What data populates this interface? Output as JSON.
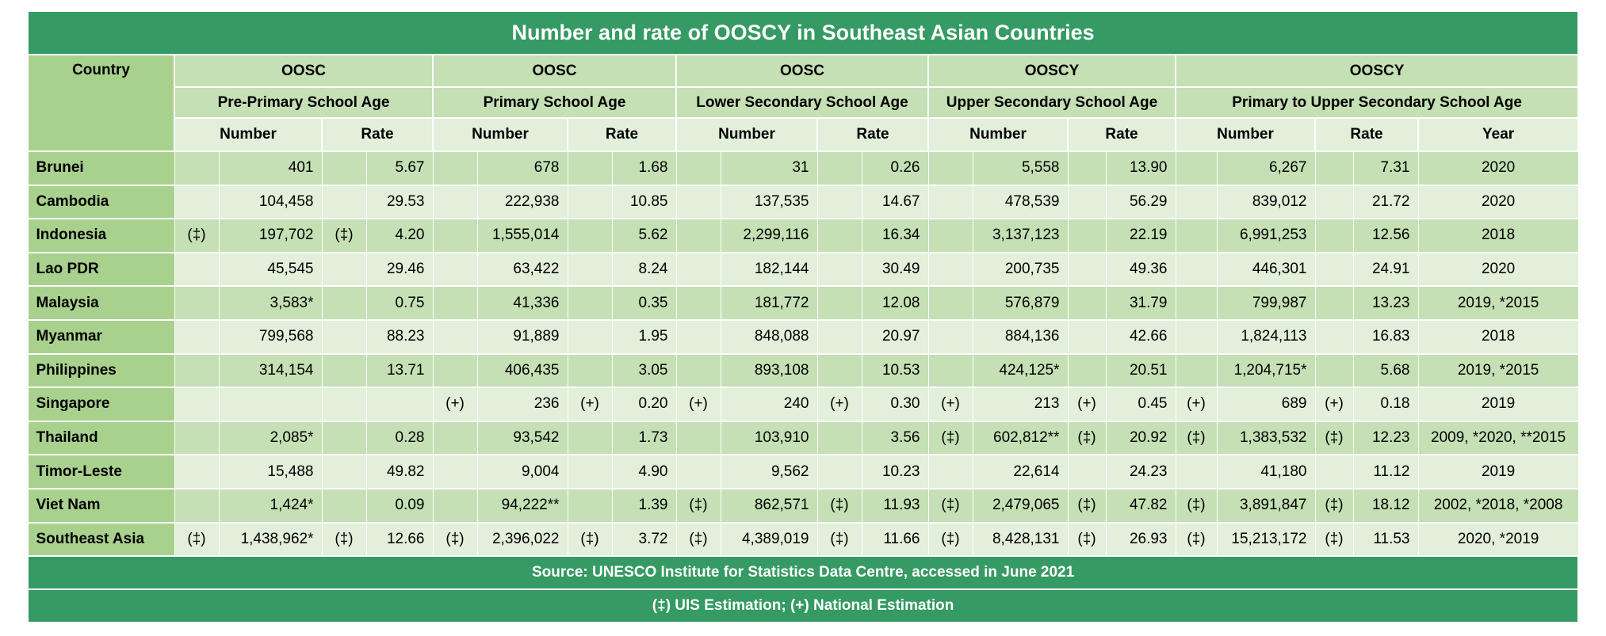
{
  "title": "Number and rate of OOSCY in Southeast Asian Countries",
  "header": {
    "country": "Country",
    "groups": [
      {
        "top": "OOSC",
        "sub": "Pre-Primary School Age"
      },
      {
        "top": "OOSC",
        "sub": "Primary School Age"
      },
      {
        "top": "OOSC",
        "sub": "Lower Secondary School Age"
      },
      {
        "top": "OOSCY",
        "sub": "Upper Secondary School Age"
      },
      {
        "top": "OOSCY",
        "sub": "Primary to Upper Secondary School Age"
      }
    ],
    "number": "Number",
    "rate": "Rate",
    "year": "Year"
  },
  "rows": [
    {
      "country": "Brunei",
      "cells": [
        [
          "",
          "401",
          "",
          "5.67"
        ],
        [
          "",
          "678",
          "",
          "1.68"
        ],
        [
          "",
          "31",
          "",
          "0.26"
        ],
        [
          "",
          "5,558",
          "",
          "13.90"
        ],
        [
          "",
          "6,267",
          "",
          "7.31"
        ]
      ],
      "year": "2020"
    },
    {
      "country": "Cambodia",
      "cells": [
        [
          "",
          "104,458",
          "",
          "29.53"
        ],
        [
          "",
          "222,938",
          "",
          "10.85"
        ],
        [
          "",
          "137,535",
          "",
          "14.67"
        ],
        [
          "",
          "478,539",
          "",
          "56.29"
        ],
        [
          "",
          "839,012",
          "",
          "21.72"
        ]
      ],
      "year": "2020"
    },
    {
      "country": "Indonesia",
      "cells": [
        [
          "(‡)",
          "197,702",
          "(‡)",
          "4.20"
        ],
        [
          "",
          "1,555,014",
          "",
          "5.62"
        ],
        [
          "",
          "2,299,116",
          "",
          "16.34"
        ],
        [
          "",
          "3,137,123",
          "",
          "22.19"
        ],
        [
          "",
          "6,991,253",
          "",
          "12.56"
        ]
      ],
      "year": "2018"
    },
    {
      "country": "Lao PDR",
      "cells": [
        [
          "",
          "45,545",
          "",
          "29.46"
        ],
        [
          "",
          "63,422",
          "",
          "8.24"
        ],
        [
          "",
          "182,144",
          "",
          "30.49"
        ],
        [
          "",
          "200,735",
          "",
          "49.36"
        ],
        [
          "",
          "446,301",
          "",
          "24.91"
        ]
      ],
      "year": "2020"
    },
    {
      "country": "Malaysia",
      "cells": [
        [
          "",
          "3,583*",
          "",
          "0.75"
        ],
        [
          "",
          "41,336",
          "",
          "0.35"
        ],
        [
          "",
          "181,772",
          "",
          "12.08"
        ],
        [
          "",
          "576,879",
          "",
          "31.79"
        ],
        [
          "",
          "799,987",
          "",
          "13.23"
        ]
      ],
      "year": "2019, *2015"
    },
    {
      "country": "Myanmar",
      "cells": [
        [
          "",
          "799,568",
          "",
          "88.23"
        ],
        [
          "",
          "91,889",
          "",
          "1.95"
        ],
        [
          "",
          "848,088",
          "",
          "20.97"
        ],
        [
          "",
          "884,136",
          "",
          "42.66"
        ],
        [
          "",
          "1,824,113",
          "",
          "16.83"
        ]
      ],
      "year": "2018"
    },
    {
      "country": "Philippines",
      "cells": [
        [
          "",
          "314,154",
          "",
          "13.71"
        ],
        [
          "",
          "406,435",
          "",
          "3.05"
        ],
        [
          "",
          "893,108",
          "",
          "10.53"
        ],
        [
          "",
          "424,125*",
          "",
          "20.51"
        ],
        [
          "",
          "1,204,715*",
          "",
          "5.68"
        ]
      ],
      "year": "2019, *2015"
    },
    {
      "country": "Singapore",
      "cells": [
        [
          "",
          "",
          "",
          ""
        ],
        [
          "(+)",
          "236",
          "(+)",
          "0.20"
        ],
        [
          "(+)",
          "240",
          "(+)",
          "0.30"
        ],
        [
          "(+)",
          "213",
          "(+)",
          "0.45"
        ],
        [
          "(+)",
          "689",
          "(+)",
          "0.18"
        ]
      ],
      "year": "2019"
    },
    {
      "country": "Thailand",
      "cells": [
        [
          "",
          "2,085*",
          "",
          "0.28"
        ],
        [
          "",
          "93,542",
          "",
          "1.73"
        ],
        [
          "",
          "103,910",
          "",
          "3.56"
        ],
        [
          "(‡)",
          "602,812**",
          "(‡)",
          "20.92"
        ],
        [
          "(‡)",
          "1,383,532",
          "(‡)",
          "12.23"
        ]
      ],
      "year": "2009, *2020, **2015"
    },
    {
      "country": "Timor-Leste",
      "cells": [
        [
          "",
          "15,488",
          "",
          "49.82"
        ],
        [
          "",
          "9,004",
          "",
          "4.90"
        ],
        [
          "",
          "9,562",
          "",
          "10.23"
        ],
        [
          "",
          "22,614",
          "",
          "24.23"
        ],
        [
          "",
          "41,180",
          "",
          "11.12"
        ]
      ],
      "year": "2019"
    },
    {
      "country": "Viet Nam",
      "cells": [
        [
          "",
          "1,424*",
          "",
          "0.09"
        ],
        [
          "",
          "94,222**",
          "",
          "1.39"
        ],
        [
          "(‡)",
          "862,571",
          "(‡)",
          "11.93"
        ],
        [
          "(‡)",
          "2,479,065",
          "(‡)",
          "47.82"
        ],
        [
          "(‡)",
          "3,891,847",
          "(‡)",
          "18.12"
        ]
      ],
      "year": "2002, *2018, *2008"
    },
    {
      "country": "Southeast Asia",
      "cells": [
        [
          "(‡)",
          "1,438,962*",
          "(‡)",
          "12.66"
        ],
        [
          "(‡)",
          "2,396,022",
          "(‡)",
          "3.72"
        ],
        [
          "(‡)",
          "4,389,019",
          "(‡)",
          "11.66"
        ],
        [
          "(‡)",
          "8,428,131",
          "(‡)",
          "26.93"
        ],
        [
          "(‡)",
          "15,213,172",
          "(‡)",
          "11.53"
        ]
      ],
      "year": "2020, *2019"
    }
  ],
  "footer": {
    "source": "Source: UNESCO Institute for Statistics Data Centre, accessed in June 2021",
    "legend": "(‡) UIS Estimation; (+) National Estimation"
  },
  "colors": {
    "title_bg": "#359a63",
    "country_bg": "#a9d18e",
    "row_dark": "#c5e0b4",
    "row_light": "#e2efda"
  }
}
